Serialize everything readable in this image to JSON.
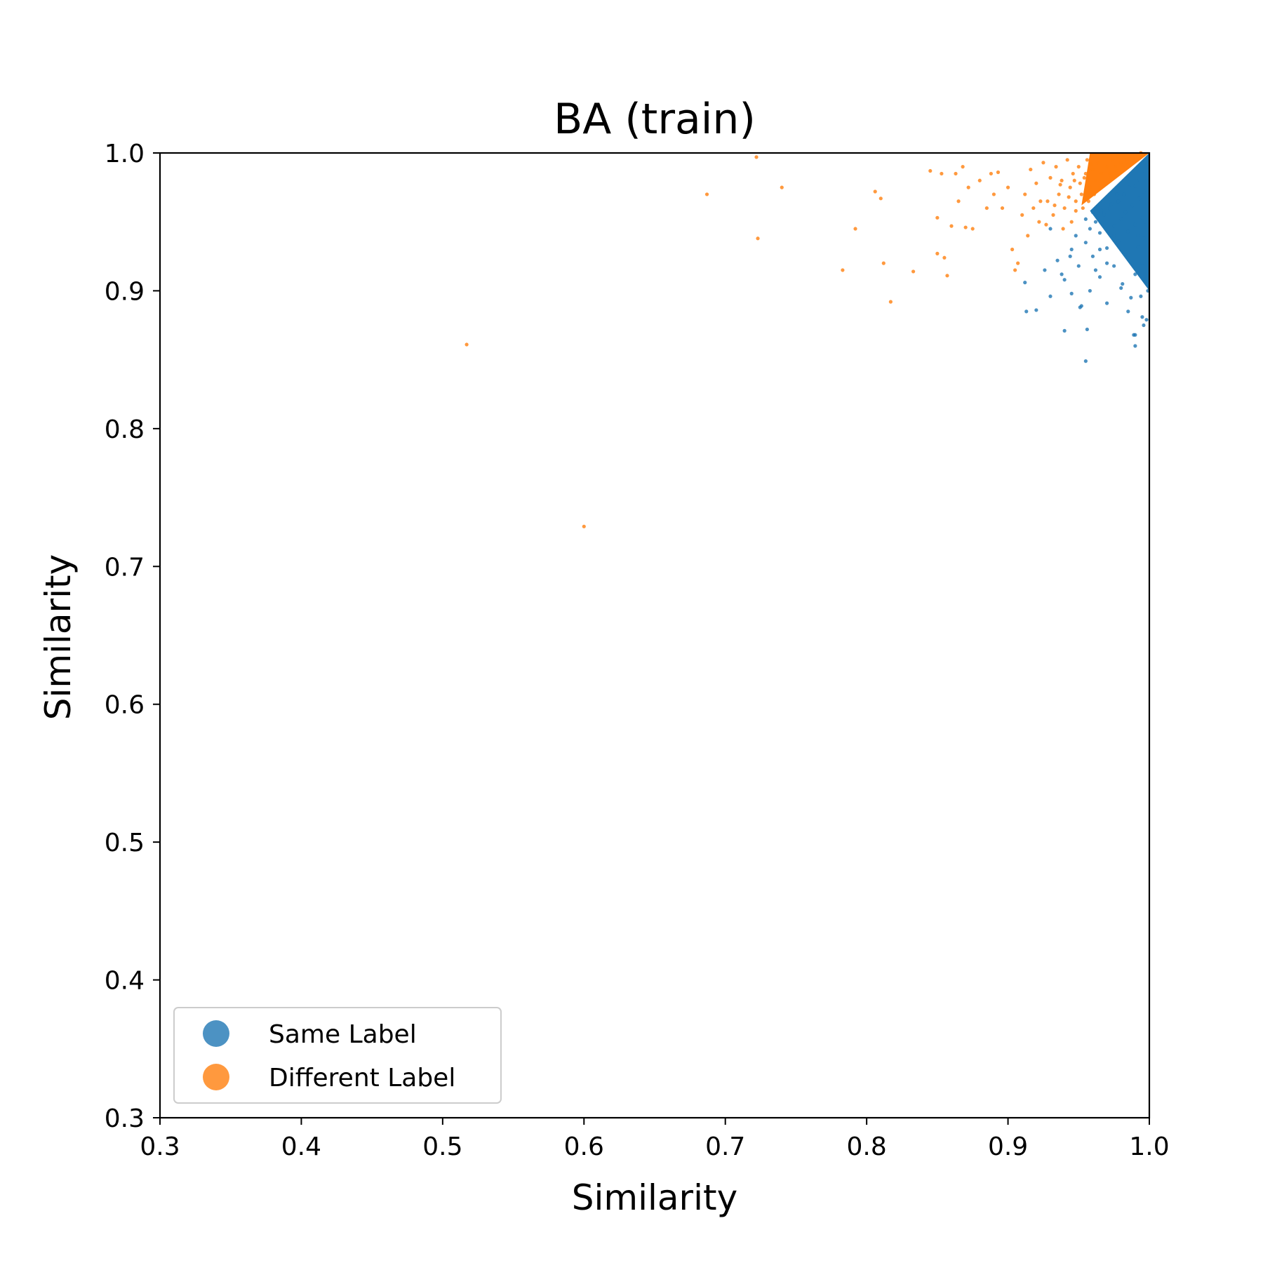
{
  "chart_data": {
    "type": "scatter",
    "title": "BA (train)",
    "xlabel": "Similarity",
    "ylabel": "Similarity",
    "xlim": [
      0.3,
      1.0
    ],
    "ylim": [
      0.3,
      1.0
    ],
    "xticks": [
      "0.3",
      "0.4",
      "0.5",
      "0.6",
      "0.7",
      "0.8",
      "0.9",
      "1.0"
    ],
    "yticks": [
      "0.3",
      "0.4",
      "0.5",
      "0.6",
      "0.7",
      "0.8",
      "0.9",
      "1.0"
    ],
    "grid": false,
    "legend_position": "lower-left",
    "series": [
      {
        "name": "Same Label",
        "color": "#1f77b4",
        "points": [
          [
            0.955,
            0.849
          ],
          [
            0.99,
            0.86
          ],
          [
            0.99,
            0.868
          ],
          [
            0.989,
            0.868
          ],
          [
            0.94,
            0.871
          ],
          [
            0.956,
            0.872
          ],
          [
            0.996,
            0.875
          ],
          [
            0.998,
            0.879
          ],
          [
            0.995,
            0.881
          ],
          [
            0.92,
            0.886
          ],
          [
            0.951,
            0.888
          ],
          [
            0.952,
            0.889
          ],
          [
            0.913,
            0.885
          ],
          [
            0.985,
            0.885
          ],
          [
            0.97,
            0.891
          ],
          [
            0.93,
            0.896
          ],
          [
            0.945,
            0.898
          ],
          [
            0.958,
            0.9
          ],
          [
            0.98,
            0.902
          ],
          [
            0.998,
            0.905
          ],
          [
            0.912,
            0.906
          ],
          [
            0.94,
            0.908
          ],
          [
            0.965,
            0.91
          ],
          [
            0.99,
            0.912
          ],
          [
            0.926,
            0.915
          ],
          [
            0.95,
            0.918
          ],
          [
            0.975,
            0.918
          ],
          [
            0.995,
            0.92
          ],
          [
            0.935,
            0.922
          ],
          [
            0.96,
            0.925
          ],
          [
            0.985,
            0.926
          ],
          [
            0.945,
            0.93
          ],
          [
            0.97,
            0.931
          ],
          [
            0.992,
            0.932
          ],
          [
            0.955,
            0.935
          ],
          [
            0.978,
            0.936
          ],
          [
            0.996,
            0.938
          ],
          [
            0.948,
            0.94
          ],
          [
            0.965,
            0.942
          ],
          [
            0.985,
            0.943
          ],
          [
            0.958,
            0.945
          ],
          [
            0.975,
            0.947
          ],
          [
            0.99,
            0.948
          ],
          [
            0.962,
            0.95
          ],
          [
            0.98,
            0.952
          ],
          [
            0.995,
            0.953
          ],
          [
            0.968,
            0.955
          ],
          [
            0.983,
            0.957
          ],
          [
            0.972,
            0.96
          ],
          [
            0.988,
            0.962
          ],
          [
            0.978,
            0.965
          ],
          [
            0.993,
            0.967
          ],
          [
            0.982,
            0.97
          ],
          [
            0.996,
            0.972
          ],
          [
            0.99,
            0.976
          ],
          [
            0.998,
            0.98
          ],
          [
            0.995,
            0.985
          ],
          [
            0.999,
            0.99
          ],
          [
            0.93,
            0.945
          ],
          [
            0.955,
            0.952
          ],
          [
            0.96,
            0.957
          ],
          [
            0.966,
            0.958
          ],
          [
            0.973,
            0.963
          ],
          [
            0.977,
            0.97
          ],
          [
            0.986,
            0.975
          ],
          [
            0.991,
            0.98
          ],
          [
            0.997,
            0.993
          ],
          [
            0.944,
            0.925
          ],
          [
            0.938,
            0.912
          ],
          [
            0.962,
            0.915
          ],
          [
            0.981,
            0.905
          ],
          [
            0.987,
            0.895
          ],
          [
            0.994,
            0.896
          ],
          [
            0.999,
            0.9
          ],
          [
            0.97,
            0.92
          ],
          [
            0.983,
            0.928
          ],
          [
            0.992,
            0.94
          ],
          [
            0.997,
            0.95
          ],
          [
            0.975,
            0.94
          ],
          [
            0.965,
            0.93
          ]
        ]
      },
      {
        "name": "Different Label",
        "color": "#ff7f0e",
        "points": [
          [
            0.517,
            0.861
          ],
          [
            0.6,
            0.729
          ],
          [
            0.687,
            0.97
          ],
          [
            0.722,
            0.997
          ],
          [
            0.723,
            0.938
          ],
          [
            0.74,
            0.975
          ],
          [
            0.783,
            0.915
          ],
          [
            0.792,
            0.945
          ],
          [
            0.806,
            0.972
          ],
          [
            0.81,
            0.967
          ],
          [
            0.812,
            0.92
          ],
          [
            0.817,
            0.892
          ],
          [
            0.833,
            0.914
          ],
          [
            0.845,
            0.987
          ],
          [
            0.85,
            0.953
          ],
          [
            0.85,
            0.927
          ],
          [
            0.853,
            0.985
          ],
          [
            0.855,
            0.924
          ],
          [
            0.857,
            0.911
          ],
          [
            0.86,
            0.947
          ],
          [
            0.863,
            0.985
          ],
          [
            0.865,
            0.965
          ],
          [
            0.868,
            0.99
          ],
          [
            0.87,
            0.946
          ],
          [
            0.872,
            0.975
          ],
          [
            0.875,
            0.945
          ],
          [
            0.88,
            0.98
          ],
          [
            0.885,
            0.96
          ],
          [
            0.888,
            0.985
          ],
          [
            0.89,
            0.97
          ],
          [
            0.893,
            0.986
          ],
          [
            0.896,
            0.96
          ],
          [
            0.9,
            0.975
          ],
          [
            0.903,
            0.93
          ],
          [
            0.905,
            0.915
          ],
          [
            0.907,
            0.92
          ],
          [
            0.91,
            0.955
          ],
          [
            0.912,
            0.97
          ],
          [
            0.914,
            0.94
          ],
          [
            0.916,
            0.988
          ],
          [
            0.918,
            0.96
          ],
          [
            0.92,
            0.978
          ],
          [
            0.922,
            0.95
          ],
          [
            0.925,
            0.993
          ],
          [
            0.928,
            0.965
          ],
          [
            0.93,
            0.982
          ],
          [
            0.932,
            0.955
          ],
          [
            0.934,
            0.99
          ],
          [
            0.936,
            0.97
          ],
          [
            0.938,
            0.98
          ],
          [
            0.94,
            0.96
          ],
          [
            0.942,
            0.995
          ],
          [
            0.944,
            0.975
          ],
          [
            0.946,
            0.985
          ],
          [
            0.948,
            0.965
          ],
          [
            0.95,
            0.99
          ],
          [
            0.952,
            0.97
          ],
          [
            0.954,
            0.982
          ],
          [
            0.956,
            0.995
          ],
          [
            0.958,
            0.975
          ],
          [
            0.96,
            0.988
          ],
          [
            0.962,
            0.98
          ],
          [
            0.964,
            0.993
          ],
          [
            0.966,
            0.985
          ],
          [
            0.968,
            0.997
          ],
          [
            0.97,
            0.99
          ],
          [
            0.972,
            0.985
          ],
          [
            0.974,
            0.995
          ],
          [
            0.976,
            0.99
          ],
          [
            0.978,
            0.998
          ],
          [
            0.98,
            0.993
          ],
          [
            0.982,
            0.997
          ],
          [
            0.984,
            0.995
          ],
          [
            0.986,
            0.999
          ],
          [
            0.988,
            0.997
          ],
          [
            0.99,
            0.999
          ],
          [
            0.992,
            0.998
          ],
          [
            0.994,
            1.0
          ],
          [
            0.945,
            0.95
          ],
          [
            0.939,
            0.945
          ],
          [
            0.948,
            0.958
          ],
          [
            0.953,
            0.96
          ],
          [
            0.957,
            0.965
          ],
          [
            0.961,
            0.97
          ],
          [
            0.965,
            0.975
          ],
          [
            0.969,
            0.978
          ],
          [
            0.973,
            0.982
          ],
          [
            0.977,
            0.987
          ],
          [
            0.981,
            0.99
          ],
          [
            0.985,
            0.992
          ],
          [
            0.989,
            0.995
          ],
          [
            0.923,
            0.965
          ],
          [
            0.927,
            0.948
          ],
          [
            0.933,
            0.962
          ],
          [
            0.937,
            0.977
          ],
          [
            0.943,
            0.968
          ],
          [
            0.947,
            0.98
          ],
          [
            0.951,
            0.978
          ],
          [
            0.955,
            0.985
          ],
          [
            0.959,
            0.992
          ]
        ]
      }
    ]
  }
}
